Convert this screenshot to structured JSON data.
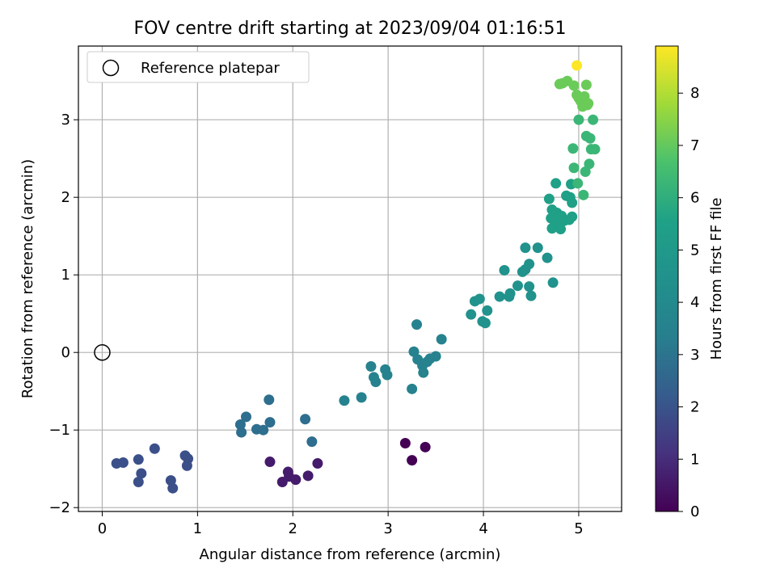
{
  "chart_data": {
    "type": "scatter",
    "title": "FOV centre drift starting at 2023/09/04 01:16:51",
    "xlabel": "Angular distance from reference (arcmin)",
    "ylabel": "Rotation from reference (arcmin)",
    "xlim": [
      -0.25,
      5.45
    ],
    "ylim": [
      -2.05,
      3.95
    ],
    "xticks": [
      "0",
      "1",
      "2",
      "3",
      "4",
      "5"
    ],
    "yticks": [
      "−2",
      "−1",
      "0",
      "1",
      "2",
      "3"
    ],
    "grid": true,
    "legend": {
      "placement": "top-left",
      "entries": [
        "Reference platepar"
      ]
    },
    "colorbar": {
      "label": "Hours from first FF file",
      "min": 0,
      "max": 8.9,
      "ticks": [
        "0",
        "1",
        "2",
        "3",
        "4",
        "5",
        "6",
        "7",
        "8"
      ],
      "colormap": "viridis"
    },
    "reference_point": {
      "x": 0,
      "y": 0
    },
    "points": [
      [
        3.18,
        -1.17,
        0.0
      ],
      [
        3.25,
        -1.39,
        0.0
      ],
      [
        3.39,
        -1.22,
        0.0
      ],
      [
        1.76,
        -1.41,
        0.6
      ],
      [
        1.89,
        -1.67,
        0.6
      ],
      [
        1.95,
        -1.54,
        0.6
      ],
      [
        1.96,
        -1.6,
        0.6
      ],
      [
        2.03,
        -1.64,
        0.6
      ],
      [
        2.16,
        -1.59,
        0.6
      ],
      [
        2.26,
        -1.43,
        0.6
      ],
      [
        0.15,
        -1.43,
        1.9
      ],
      [
        0.22,
        -1.42,
        1.9
      ],
      [
        0.38,
        -1.38,
        1.9
      ],
      [
        0.38,
        -1.67,
        1.9
      ],
      [
        0.41,
        -1.56,
        1.9
      ],
      [
        0.55,
        -1.24,
        1.9
      ],
      [
        0.72,
        -1.65,
        1.9
      ],
      [
        0.74,
        -1.75,
        1.9
      ],
      [
        0.87,
        -1.33,
        1.9
      ],
      [
        0.89,
        -1.46,
        1.9
      ],
      [
        0.9,
        -1.37,
        1.9
      ],
      [
        1.45,
        -0.93,
        2.8
      ],
      [
        1.46,
        -1.03,
        2.8
      ],
      [
        1.51,
        -0.83,
        2.8
      ],
      [
        1.62,
        -0.99,
        2.8
      ],
      [
        1.69,
        -1.0,
        2.8
      ],
      [
        1.75,
        -0.61,
        2.8
      ],
      [
        1.76,
        -0.9,
        2.8
      ],
      [
        2.13,
        -0.86,
        2.8
      ],
      [
        2.2,
        -1.15,
        2.8
      ],
      [
        2.54,
        -0.62,
        3.5
      ],
      [
        2.72,
        -0.58,
        3.5
      ],
      [
        2.82,
        -0.18,
        3.5
      ],
      [
        2.85,
        -0.32,
        3.5
      ],
      [
        2.87,
        -0.38,
        3.5
      ],
      [
        2.97,
        -0.22,
        3.5
      ],
      [
        2.99,
        -0.29,
        3.5
      ],
      [
        3.25,
        -0.47,
        3.5
      ],
      [
        3.27,
        0.01,
        3.5
      ],
      [
        3.3,
        0.36,
        3.5
      ],
      [
        3.31,
        -0.09,
        3.5
      ],
      [
        3.36,
        -0.17,
        3.5
      ],
      [
        3.37,
        -0.26,
        3.5
      ],
      [
        3.41,
        -0.12,
        3.5
      ],
      [
        3.44,
        -0.08,
        3.5
      ],
      [
        3.5,
        -0.05,
        3.5
      ],
      [
        3.56,
        0.17,
        3.5
      ],
      [
        3.87,
        0.49,
        4.5
      ],
      [
        3.91,
        0.66,
        4.5
      ],
      [
        3.96,
        0.69,
        4.5
      ],
      [
        3.99,
        0.4,
        4.5
      ],
      [
        4.02,
        0.38,
        4.5
      ],
      [
        4.04,
        0.54,
        4.5
      ],
      [
        4.17,
        0.72,
        4.5
      ],
      [
        4.22,
        1.06,
        4.5
      ],
      [
        4.27,
        0.72,
        4.5
      ],
      [
        4.28,
        0.76,
        4.5
      ],
      [
        4.36,
        0.86,
        4.5
      ],
      [
        4.41,
        1.04,
        4.5
      ],
      [
        4.44,
        1.07,
        4.5
      ],
      [
        4.44,
        1.35,
        4.5
      ],
      [
        4.48,
        1.14,
        4.5
      ],
      [
        4.48,
        0.85,
        4.5
      ],
      [
        4.5,
        0.73,
        4.5
      ],
      [
        4.57,
        1.35,
        4.5
      ],
      [
        4.67,
        1.22,
        4.5
      ],
      [
        4.73,
        0.9,
        4.5
      ],
      [
        4.69,
        1.98,
        5.5
      ],
      [
        4.71,
        1.73,
        5.5
      ],
      [
        4.72,
        1.84,
        5.5
      ],
      [
        4.72,
        1.6,
        5.5
      ],
      [
        4.76,
        2.18,
        5.5
      ],
      [
        4.76,
        1.67,
        5.5
      ],
      [
        4.77,
        1.8,
        5.5
      ],
      [
        4.79,
        1.73,
        5.5
      ],
      [
        4.8,
        1.63,
        5.5
      ],
      [
        4.81,
        1.59,
        5.5
      ],
      [
        4.82,
        1.76,
        5.5
      ],
      [
        4.85,
        1.7,
        5.5
      ],
      [
        4.87,
        2.02,
        5.5
      ],
      [
        4.9,
        1.71,
        5.5
      ],
      [
        4.91,
        2.0,
        5.5
      ],
      [
        4.92,
        2.17,
        5.5
      ],
      [
        4.93,
        1.75,
        5.5
      ],
      [
        4.93,
        1.93,
        5.5
      ],
      [
        4.94,
        2.63,
        6.3
      ],
      [
        4.95,
        2.38,
        6.3
      ],
      [
        4.99,
        2.18,
        6.3
      ],
      [
        5.0,
        3.0,
        6.3
      ],
      [
        5.05,
        2.03,
        6.3
      ],
      [
        5.07,
        2.33,
        6.3
      ],
      [
        5.08,
        2.79,
        6.3
      ],
      [
        5.11,
        2.43,
        6.3
      ],
      [
        5.12,
        2.76,
        6.3
      ],
      [
        5.13,
        2.62,
        6.3
      ],
      [
        5.15,
        3.0,
        6.3
      ],
      [
        5.17,
        2.62,
        6.3
      ],
      [
        4.8,
        3.46,
        7.1
      ],
      [
        4.83,
        3.47,
        7.1
      ],
      [
        4.88,
        3.5,
        7.1
      ],
      [
        4.95,
        3.44,
        7.1
      ],
      [
        4.98,
        3.32,
        7.1
      ],
      [
        5.0,
        3.28,
        7.1
      ],
      [
        5.02,
        3.24,
        7.1
      ],
      [
        5.04,
        3.17,
        7.1
      ],
      [
        5.06,
        3.3,
        7.1
      ],
      [
        5.08,
        3.45,
        7.1
      ],
      [
        5.09,
        3.19,
        7.1
      ],
      [
        5.1,
        3.21,
        7.1
      ],
      [
        4.98,
        3.7,
        8.9
      ]
    ]
  }
}
